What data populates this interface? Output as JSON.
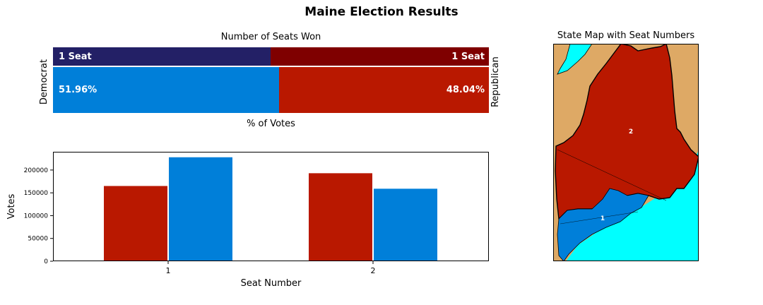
{
  "title": "Maine Election Results",
  "colors": {
    "dem_seat": "#232066",
    "rep_seat": "#7f0000",
    "dem_vote": "#007fd9",
    "rep_vote": "#b91800",
    "water": "#00ffff",
    "land": "#dea965"
  },
  "seat_panel": {
    "title": "Number of Seats Won",
    "left_label": "Democrat",
    "right_label": "Republican",
    "xlabel": "% of Votes",
    "dem_seat_label": "1 Seat",
    "rep_seat_label": "1 Seat",
    "dem_vote_label": "51.96%",
    "rep_vote_label": "48.04%"
  },
  "map": {
    "title": "State Map with Seat Numbers",
    "district_labels": [
      "1",
      "2"
    ]
  },
  "chart_data": [
    {
      "type": "bar",
      "title": "Number of Seats Won",
      "xlabel": "% of Votes",
      "categories": [
        "Democrat",
        "Republican"
      ],
      "series": [
        {
          "name": "Seats",
          "values": [
            1,
            1
          ]
        },
        {
          "name": "% of Votes",
          "values": [
            51.96,
            48.04
          ]
        }
      ],
      "orientation": "horizontal-stacked"
    },
    {
      "type": "bar",
      "xlabel": "Seat Number",
      "ylabel": "Votes",
      "categories": [
        "1",
        "2"
      ],
      "series": [
        {
          "values": [
            165000,
            193000
          ],
          "color": "#b91800"
        },
        {
          "values": [
            228000,
            159000
          ],
          "color": "#007fd9"
        }
      ],
      "ylim": [
        0,
        240000
      ],
      "yticks": [
        0,
        50000,
        100000,
        150000,
        200000
      ],
      "ytick_labels": [
        "0",
        "50000",
        "100000",
        "150000",
        "200000"
      ],
      "xtick_labels": [
        "1",
        "2"
      ],
      "grid": false
    }
  ]
}
